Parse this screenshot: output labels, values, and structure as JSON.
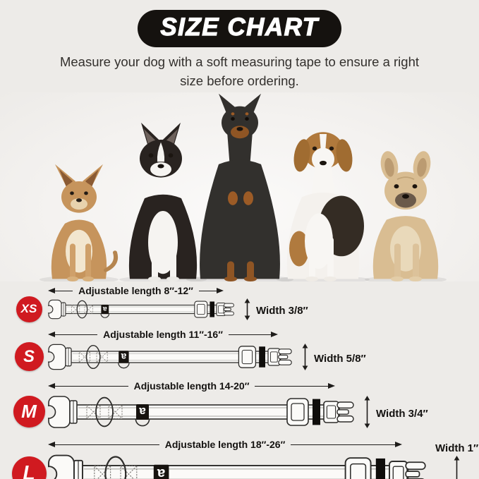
{
  "header": {
    "title": "SIZE CHART",
    "subtitle": "Measure your dog with a soft measuring tape to ensure a right size before ordering."
  },
  "dogs_photo": {
    "description": "Five dogs sitting in a row",
    "breeds": [
      "chihuahua",
      "boston-terrier",
      "doberman",
      "beagle",
      "french-bulldog"
    ]
  },
  "sizes": [
    {
      "size": "XS",
      "length_label": "Adjustable length 8″-12″",
      "width_label": "Width 3/8″"
    },
    {
      "size": "S",
      "length_label": "Adjustable length 11″-16″",
      "width_label": "Width 5/8″"
    },
    {
      "size": "M",
      "length_label": "Adjustable length 14-20″",
      "width_label": "Width 3/4″"
    },
    {
      "size": "L",
      "length_label": "Adjustable length 18″-26″",
      "width_label": "Width 1″"
    }
  ],
  "colors": {
    "badge_red": "#d01a20",
    "banner_black": "#15120f",
    "background": "#edebe8",
    "diagram_line": "#2e2d2b"
  }
}
